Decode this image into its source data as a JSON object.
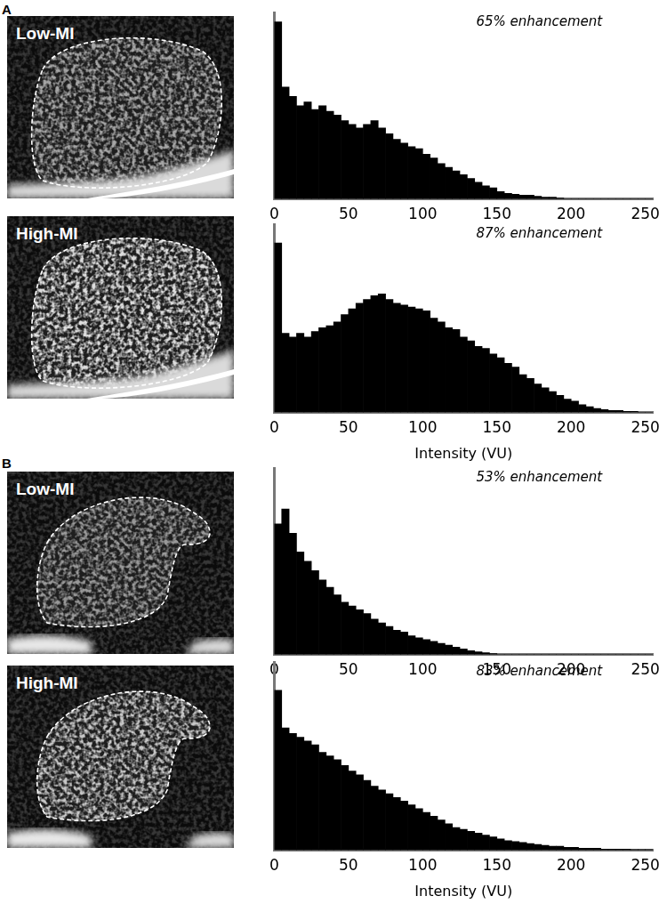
{
  "panel_labels": [
    "A",
    "B"
  ],
  "chart_data": [
    {
      "type": "histogram",
      "image_label": "Low-MI",
      "annotation": "65% enhancement",
      "color": "#000000",
      "bins": [
        0,
        5,
        10,
        15,
        20,
        25,
        30,
        35,
        40,
        45,
        50,
        55,
        60,
        65,
        70,
        75,
        80,
        85,
        90,
        95,
        100,
        105,
        110,
        115,
        120,
        125,
        130,
        135,
        140,
        145,
        150,
        155,
        160,
        165,
        170,
        175,
        180,
        185,
        190,
        195,
        200,
        205,
        210,
        215,
        220,
        225,
        230,
        235,
        240,
        245,
        250,
        255
      ],
      "values": [
        95,
        60,
        55,
        50,
        52,
        48,
        50,
        47,
        45,
        42,
        40,
        38,
        40,
        42,
        38,
        35,
        32,
        30,
        28,
        27,
        24,
        22,
        19,
        17,
        15,
        13,
        11,
        9,
        7,
        6,
        4,
        3,
        2.5,
        2,
        2,
        1.5,
        1,
        1,
        0.5,
        0,
        0,
        0,
        0,
        0,
        0,
        0,
        0,
        0,
        0,
        0,
        0
      ],
      "xlim": [
        0,
        255
      ],
      "xticks": [
        0,
        50,
        100,
        150,
        200,
        250
      ],
      "ylim": [
        0,
        100
      ],
      "tick_labels": "x",
      "grid": false
    },
    {
      "type": "histogram",
      "image_label": "High-MI",
      "annotation": "87% enhancement",
      "color": "#000000",
      "x_label": "Intensity (VU)",
      "bins": [
        0,
        5,
        10,
        15,
        20,
        25,
        30,
        35,
        40,
        45,
        50,
        55,
        60,
        65,
        70,
        75,
        80,
        85,
        90,
        95,
        100,
        105,
        110,
        115,
        120,
        125,
        130,
        135,
        140,
        145,
        150,
        155,
        160,
        165,
        170,
        175,
        180,
        185,
        190,
        195,
        200,
        205,
        210,
        215,
        220,
        225,
        230,
        235,
        240,
        245,
        250,
        255
      ],
      "values": [
        90,
        42,
        40,
        42,
        40,
        43,
        45,
        46,
        48,
        52,
        55,
        58,
        60,
        62,
        63,
        60,
        58,
        57,
        56,
        55,
        54,
        50,
        48,
        45,
        44,
        40,
        38,
        35,
        34,
        31,
        29,
        26,
        24,
        20,
        18,
        15,
        13,
        11,
        9,
        7,
        6,
        4,
        3,
        2,
        1.5,
        1,
        1,
        0.5,
        0.5,
        0,
        0
      ],
      "xlim": [
        0,
        255
      ],
      "xticks": [
        0,
        50,
        100,
        150,
        200,
        250
      ],
      "ylim": [
        0,
        100
      ],
      "tick_labels": "x",
      "grid": false
    },
    {
      "type": "histogram",
      "image_label": "Low-MI",
      "annotation": "53% enhancement",
      "color": "#000000",
      "bins": [
        0,
        5,
        10,
        15,
        20,
        25,
        30,
        35,
        40,
        45,
        50,
        55,
        60,
        65,
        70,
        75,
        80,
        85,
        90,
        95,
        100,
        105,
        110,
        115,
        120,
        125,
        130,
        135,
        140,
        145,
        150,
        155,
        160,
        165,
        170,
        175,
        180,
        185,
        190,
        195,
        200,
        205,
        210,
        215,
        220,
        225,
        230,
        235,
        240,
        245,
        250,
        255
      ],
      "values": [
        70,
        78,
        65,
        55,
        50,
        45,
        40,
        36,
        32,
        28,
        26,
        24,
        22,
        19,
        17,
        15,
        13,
        12,
        10,
        9,
        8,
        7,
        6,
        5,
        4,
        3,
        2,
        1.5,
        1,
        0.5,
        0,
        0,
        0,
        0,
        0,
        0,
        0,
        0,
        0,
        0,
        0,
        0,
        0,
        0,
        0,
        0,
        0,
        0,
        0,
        0,
        0
      ],
      "xlim": [
        0,
        255
      ],
      "xticks": [
        0,
        50,
        100,
        150,
        200,
        250
      ],
      "ylim": [
        0,
        100
      ],
      "tick_labels": "x",
      "grid": false
    },
    {
      "type": "histogram",
      "image_label": "High-MI",
      "annotation": "83% enhancement",
      "color": "#000000",
      "x_label": "Intensity (VU)",
      "bins": [
        0,
        5,
        10,
        15,
        20,
        25,
        30,
        35,
        40,
        45,
        50,
        55,
        60,
        65,
        70,
        75,
        80,
        85,
        90,
        95,
        100,
        105,
        110,
        115,
        120,
        125,
        130,
        135,
        140,
        145,
        150,
        155,
        160,
        165,
        170,
        175,
        180,
        185,
        190,
        195,
        200,
        205,
        210,
        215,
        220,
        225,
        230,
        235,
        240,
        245,
        250,
        255
      ],
      "values": [
        85,
        65,
        62,
        60,
        58,
        56,
        52,
        50,
        48,
        45,
        42,
        40,
        37,
        34,
        32,
        30,
        28,
        26,
        24,
        22,
        20,
        18,
        16,
        14,
        12,
        11,
        10,
        9,
        8,
        7,
        6,
        5,
        4.5,
        4,
        3.5,
        3,
        2.5,
        2,
        2,
        1.5,
        1.5,
        1,
        1,
        1,
        0.5,
        0.5,
        0.5,
        0.5,
        0.3,
        0.3,
        0.3
      ],
      "xlim": [
        0,
        255
      ],
      "xticks": [
        0,
        50,
        100,
        150,
        200,
        250
      ],
      "ylim": [
        0,
        100
      ],
      "tick_labels": "x",
      "grid": false
    }
  ]
}
